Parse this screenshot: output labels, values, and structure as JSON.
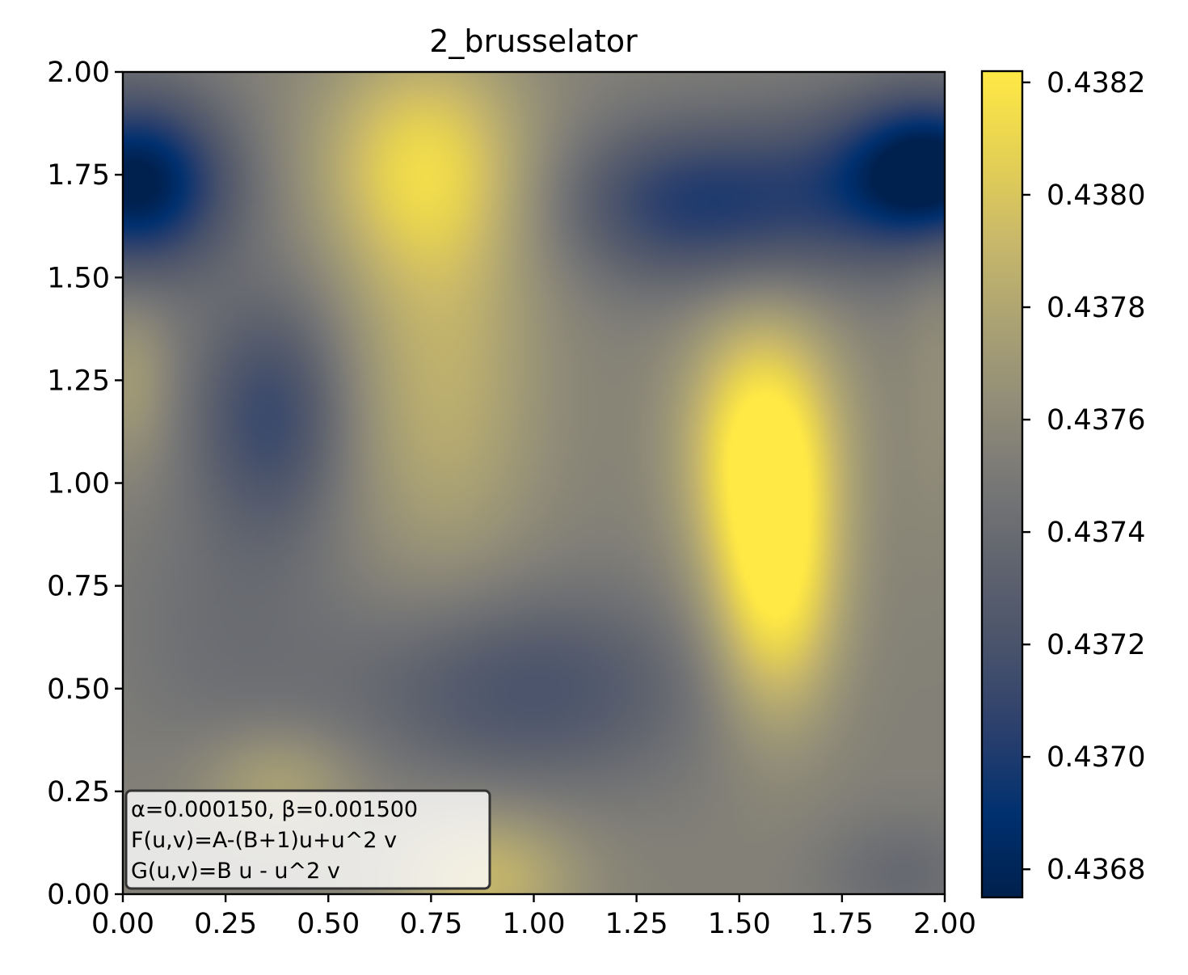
{
  "chart_data": {
    "type": "heatmap",
    "title": "2_brusselator",
    "xlabel": "",
    "ylabel": "",
    "xlim": [
      0,
      2
    ],
    "ylim": [
      0,
      2
    ],
    "x_ticks": [
      "0.00",
      "0.25",
      "0.50",
      "0.75",
      "1.00",
      "1.25",
      "1.50",
      "1.75",
      "2.00"
    ],
    "y_ticks": [
      "0.00",
      "0.25",
      "0.50",
      "0.75",
      "1.00",
      "1.25",
      "1.50",
      "1.75",
      "2.00"
    ],
    "colormap": "cividis",
    "colormap_stops": [
      "#00204d",
      "#00306f",
      "#2a3f6d",
      "#48526b",
      "#5f636e",
      "#777776",
      "#928d78",
      "#aca373",
      "#cab969",
      "#e6d252",
      "#ffe945"
    ],
    "colorbar": {
      "range": [
        0.43675,
        0.43822
      ],
      "ticks": [
        "0.4368",
        "0.4370",
        "0.4372",
        "0.4374",
        "0.4376",
        "0.4378",
        "0.4380",
        "0.4382"
      ],
      "tick_values": [
        0.4368,
        0.437,
        0.4372,
        0.4374,
        0.4376,
        0.4378,
        0.438,
        0.4382
      ]
    },
    "baseline": 0.43755,
    "features": [
      {
        "x": 0.03,
        "y": 1.73,
        "sx": 0.16,
        "sy": 0.15,
        "amp": -0.00083
      },
      {
        "x": 1.97,
        "y": 1.76,
        "sx": 0.15,
        "sy": 0.13,
        "amp": -0.00085
      },
      {
        "x": 1.38,
        "y": 1.68,
        "sx": 0.22,
        "sy": 0.14,
        "amp": -0.0005
      },
      {
        "x": 1.72,
        "y": 1.7,
        "sx": 0.18,
        "sy": 0.16,
        "amp": -0.00025
      },
      {
        "x": 0.73,
        "y": 1.78,
        "sx": 0.18,
        "sy": 0.2,
        "amp": 0.0005
      },
      {
        "x": 0.78,
        "y": 1.25,
        "sx": 0.17,
        "sy": 0.35,
        "amp": 0.0003
      },
      {
        "x": 0.36,
        "y": 1.17,
        "sx": 0.13,
        "sy": 0.2,
        "amp": -0.00042
      },
      {
        "x": 1.56,
        "y": 1.1,
        "sx": 0.13,
        "sy": 0.22,
        "amp": 0.00072
      },
      {
        "x": 1.59,
        "y": 0.72,
        "sx": 0.11,
        "sy": 0.22,
        "amp": 0.0006
      },
      {
        "x": 0.98,
        "y": 0.5,
        "sx": 0.3,
        "sy": 0.17,
        "amp": -0.00035
      },
      {
        "x": 0.25,
        "y": 0.65,
        "sx": 0.2,
        "sy": 0.25,
        "amp": -0.00012
      },
      {
        "x": 0.88,
        "y": 0.04,
        "sx": 0.16,
        "sy": 0.12,
        "amp": 0.00035
      },
      {
        "x": 0.38,
        "y": 0.27,
        "sx": 0.14,
        "sy": 0.1,
        "amp": 0.00024
      },
      {
        "x": 0.02,
        "y": 1.25,
        "sx": 0.07,
        "sy": 0.15,
        "amp": 0.00018
      },
      {
        "x": 1.9,
        "y": 0.05,
        "sx": 0.14,
        "sy": 0.1,
        "amp": -0.00016
      },
      {
        "x": 1.98,
        "y": 1.25,
        "sx": 0.06,
        "sy": 0.3,
        "amp": 8e-05
      }
    ],
    "annotation": {
      "lines": [
        "α=0.000150, β=0.001500",
        "F(u,v)=A-(B+1)u+u^2 v",
        "G(u,v)=B u - u^2 v"
      ]
    }
  }
}
